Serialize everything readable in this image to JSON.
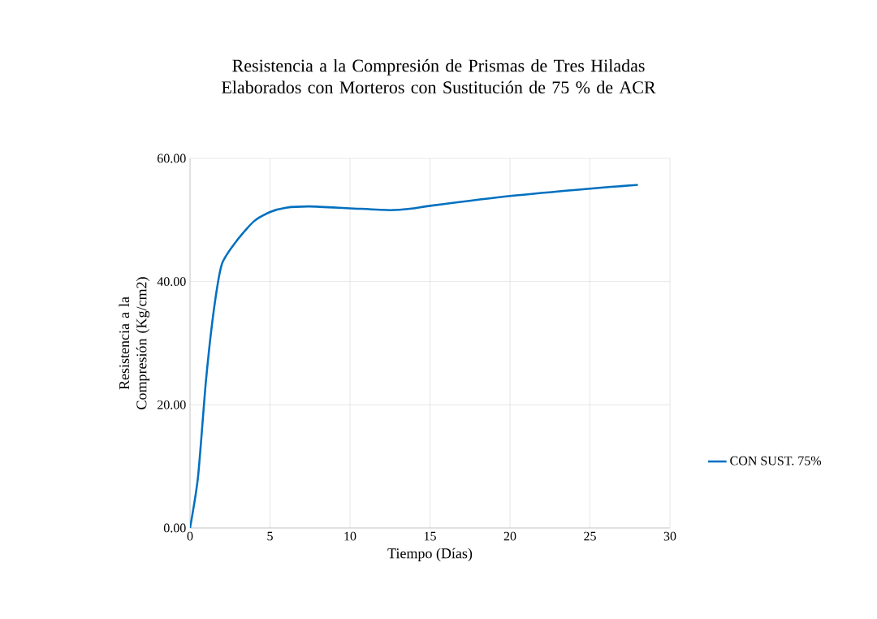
{
  "chart_data": {
    "type": "line",
    "title": "Resistencia a la Compresión de Prismas de Tres Hiladas Elaborados con Morteros con Sustitución de 75 % de ACR",
    "xlabel": "Tiempo (Días)",
    "ylabel": "Resistencia a la Compresión (Kg/cm2)",
    "series": [
      {
        "name": "CON SUST. 75%",
        "color": "#0070c0",
        "x": [
          0,
          0.5,
          1,
          1.5,
          2,
          3,
          4,
          5,
          6,
          7.5,
          10,
          12.5,
          14,
          15,
          20,
          25,
          28
        ],
        "values": [
          0,
          8.3,
          24,
          35.6,
          42.9,
          46.9,
          49.8,
          51.3,
          52.0,
          52.2,
          51.9,
          51.6,
          51.9,
          52.3,
          53.9,
          55.1,
          55.7
        ]
      }
    ],
    "xlim": [
      0,
      30
    ],
    "xticks": [
      0,
      5,
      10,
      15,
      20,
      25,
      30
    ],
    "ylim": [
      0,
      60
    ],
    "yticks": [
      {
        "value": 0,
        "label": "0.00"
      },
      {
        "value": 20,
        "label": "20.00"
      },
      {
        "value": 40,
        "label": "40.00"
      },
      {
        "value": 60,
        "label": "60.00"
      }
    ],
    "grid": true,
    "legend": "right",
    "marker": "none",
    "line_style": "solid"
  }
}
